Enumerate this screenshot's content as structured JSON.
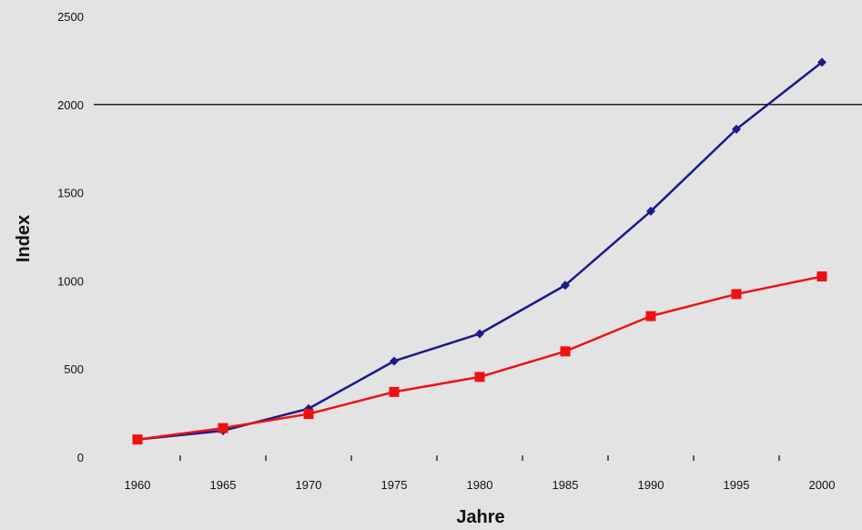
{
  "chart_data": {
    "type": "line",
    "title": "",
    "xlabel": "Jahre",
    "ylabel": "Index",
    "x": [
      1960,
      1965,
      1970,
      1975,
      1980,
      1985,
      1990,
      1995,
      2000
    ],
    "x_tick_labels": [
      "1960",
      "1965",
      "1970",
      "1975",
      "1980",
      "1985",
      "1990",
      "1995",
      "2000"
    ],
    "y_tick_labels": [
      "0",
      "500",
      "1000",
      "1500",
      "2000",
      "2500"
    ],
    "y_ticks": [
      0,
      500,
      1000,
      1500,
      2000,
      2500
    ],
    "ylim": [
      0,
      2500
    ],
    "reference_line": 2000,
    "grid": false,
    "legend": "none",
    "series": [
      {
        "color": "#1a1a8c",
        "marker": "diamond",
        "values": [
          100,
          150,
          275,
          545,
          700,
          975,
          1395,
          1860,
          2240
        ]
      },
      {
        "color": "#ee1111",
        "marker": "square",
        "values": [
          100,
          165,
          245,
          370,
          455,
          600,
          800,
          925,
          1025
        ]
      }
    ]
  }
}
